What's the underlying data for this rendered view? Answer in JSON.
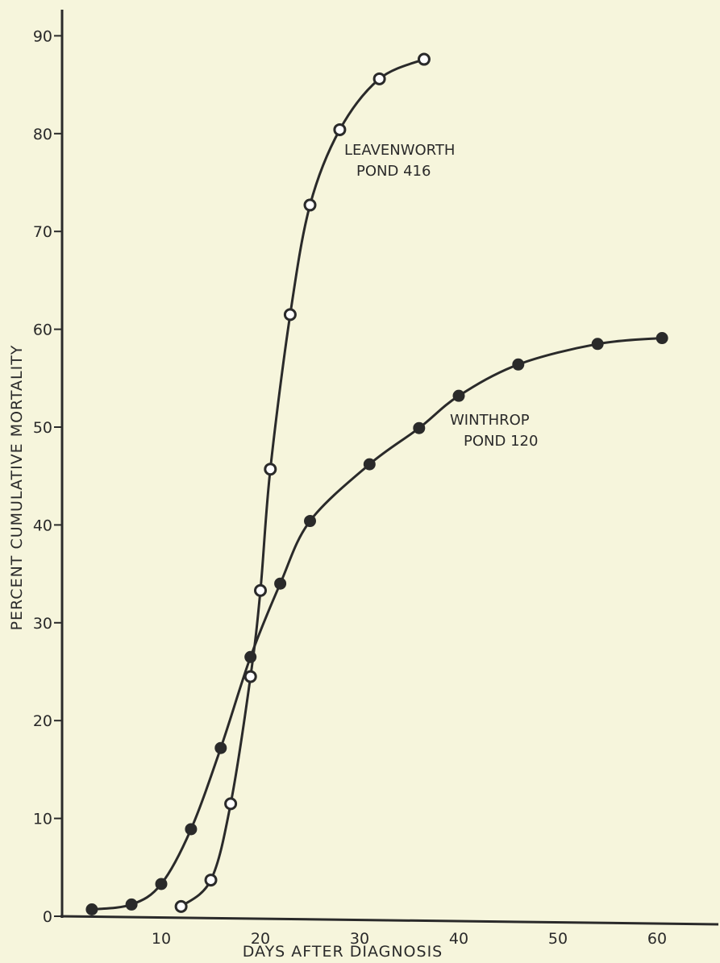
{
  "chart_data": {
    "type": "line",
    "title": "",
    "xlabel": "DAYS AFTER DIAGNOSIS",
    "ylabel": "PERCENT CUMULATIVE MORTALITY",
    "xlim": [
      0,
      64
    ],
    "ylim": [
      0,
      90
    ],
    "xticks": [
      10,
      20,
      30,
      40,
      50,
      60
    ],
    "yticks": [
      0,
      10,
      20,
      30,
      40,
      50,
      60,
      70,
      80,
      90
    ],
    "grid": false,
    "series": [
      {
        "name_line1": "LEAVENWORTH",
        "name_line2": "POND 416",
        "marker": "open",
        "x": [
          12,
          15,
          17,
          19,
          20,
          21,
          23,
          25,
          28,
          32,
          36.5
        ],
        "y": [
          1,
          3.7,
          11.5,
          24.5,
          33.3,
          45.7,
          61.5,
          72.7,
          80.4,
          85.6,
          87.6
        ]
      },
      {
        "name_line1": "WINTHROP",
        "name_line2": "POND 120",
        "marker": "filled",
        "x": [
          3,
          7,
          10,
          13,
          16,
          19,
          22,
          25,
          31,
          36,
          40,
          46,
          54,
          60.5
        ],
        "y": [
          0.7,
          1.2,
          3.3,
          8.9,
          17.2,
          26.5,
          34,
          40.4,
          46.2,
          49.9,
          53.2,
          56.4,
          58.5,
          59.1
        ]
      }
    ],
    "colors": {
      "background": "#f6f5dc",
      "ink": "#2a2a2a",
      "marker_fill": "#ffffff"
    }
  }
}
